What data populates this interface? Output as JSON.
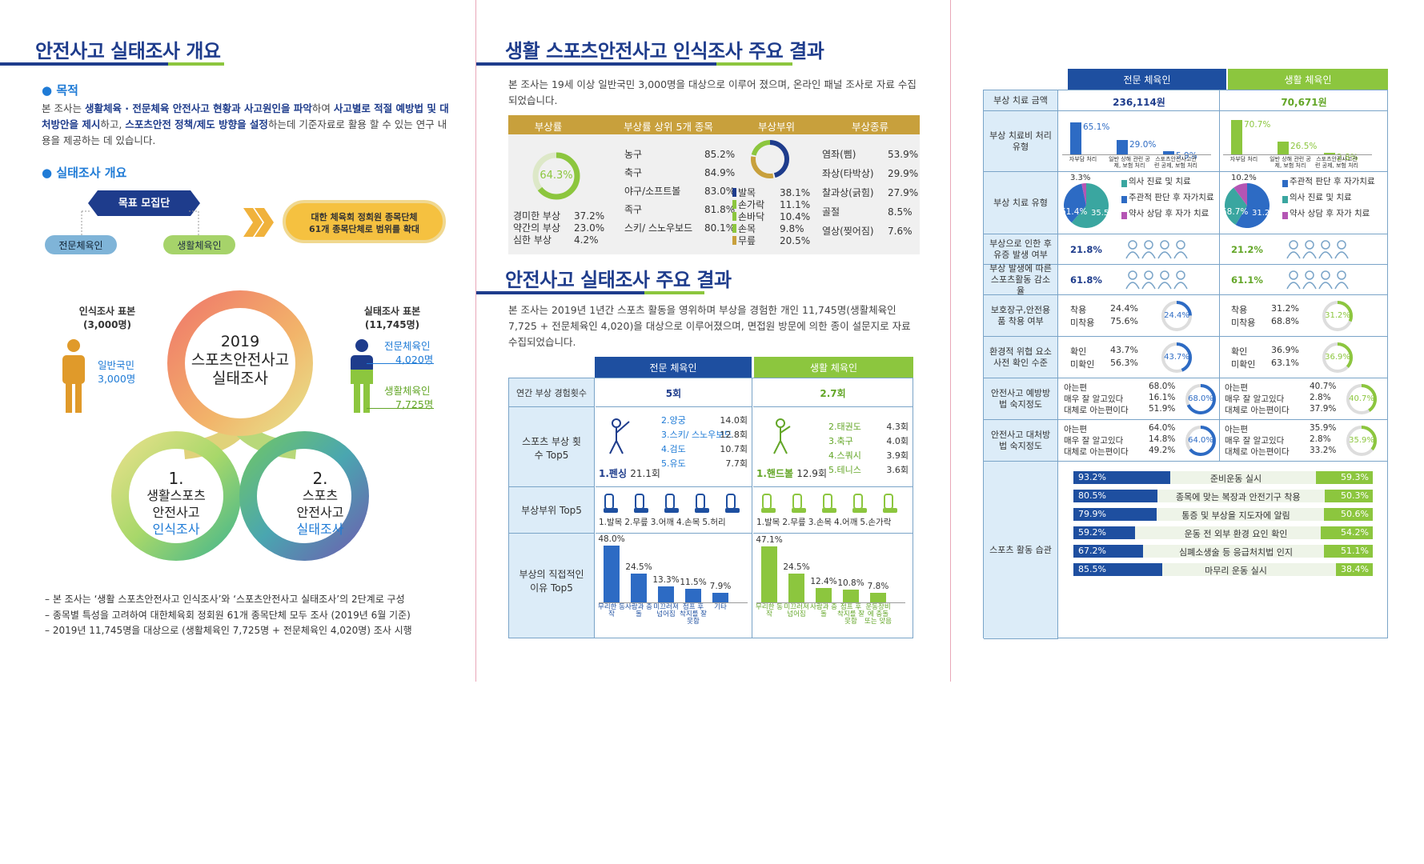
{
  "left": {
    "title": "안전사고 실태조사 개요",
    "purpose_heading": "목적",
    "purpose_text_parts": [
      "본 조사는 ",
      "생활체육 · 전문체육 안전사고 현황과 사고원인을 파악",
      "하여 ",
      "사고별로 적절 예방법 및 대처방안을 제시",
      "하고, ",
      "스포츠안전 정책/제도 방향을 설정",
      "하는데 기준자료로 활용 할 수 있는 연구 내용을 제공하는 데 있습니다."
    ],
    "overview_heading": "실태조사 개요",
    "target_pop": "목표 모집단",
    "pop_pro": "전문체육인",
    "pop_life": "생활체육인",
    "expansion": "대한 체육회 정회원 종목단체 61개 종목단체로 범위를 확대",
    "expansion_l1": "대한 체육회 정회원 종목단체",
    "expansion_l2": "61개 종목단체로 범위를 확대",
    "sample1_title": "인식조사 표본",
    "sample1_n": "(3,000명)",
    "sample1_label": "일반국민",
    "sample1_val": "3,000명",
    "sample2_title": "실태조사 표본",
    "sample2_n": "(11,745명)",
    "sample2_pro": "전문체육인",
    "sample2_pro_val": "4,020명",
    "sample2_life": "생활체육인",
    "sample2_life_val": "7,725명",
    "center_l1": "2019",
    "center_l2": "스포츠안전사고",
    "center_l3": "실태조사",
    "c1_l1": "1.",
    "c1_l2": "생활스포츠",
    "c1_l3": "안전사고",
    "c1_l4": "인식조사",
    "c2_l1": "2.",
    "c2_l2": "스포츠",
    "c2_l3": "안전사고",
    "c2_l4": "실태조사",
    "notes": [
      "– 본 조사는 ‘생활 스포츠안전사고 인식조사’와 ‘스포츠안전사고 실태조사’의 2단계로 구성",
      "– 종목별 특성을 고려하여 대한체육회 정회원 61개 종목단체 모두 조사 (2019년 6월 기준)",
      "– 2019년 11,745명을 대상으로 (생활체육인 7,725명 + 전문체육인 4,020명) 조사 시행"
    ]
  },
  "middle": {
    "title1": "생활 스포츠안전사고 인식조사 주요 결과",
    "intro1": "본 조사는 19세 이상 일반국민 3,000명을 대상으로 이루어 졌으며, 온라인 패널 조사로 자료 수집되었습니다.",
    "hdr": [
      "부상률",
      "부상률 상위 5개 종목",
      "부상부위",
      "부상종류"
    ],
    "injury_rate": "64.3%",
    "injury_rate_value": 64.3,
    "severity": [
      {
        "label": "경미한 부상",
        "value": "37.2%"
      },
      {
        "label": "약간의 부상",
        "value": "23.0%"
      },
      {
        "label": "심한 부상",
        "value": "4.2%"
      }
    ],
    "top5_sports": [
      {
        "label": "농구",
        "value": "85.2%"
      },
      {
        "label": "축구",
        "value": "84.9%"
      },
      {
        "label": "야구/소프트볼",
        "value": "83.0%"
      },
      {
        "label": "족구",
        "value": "81.8%"
      },
      {
        "label": "스키/ 스노우보드",
        "value": "80.1%"
      }
    ],
    "body_parts": [
      {
        "label": "발목",
        "value": "38.1%",
        "color": "#1e3c8c"
      },
      {
        "label": "손가락",
        "value": "11.1%",
        "color": "#8cc63e"
      },
      {
        "label": "손바닥",
        "value": "10.4%",
        "color": "#8cc63e"
      },
      {
        "label": "손목",
        "value": "9.8%",
        "color": "#8cc63e"
      },
      {
        "label": "무릎",
        "value": "20.5%",
        "color": "#c8a03c"
      }
    ],
    "injury_types": [
      {
        "label": "염좌(삠)",
        "value": "53.9%"
      },
      {
        "label": "좌상(타박상)",
        "value": "29.9%"
      },
      {
        "label": "찰과상(긁힘)",
        "value": "27.9%"
      },
      {
        "label": "골절",
        "value": "8.5%"
      },
      {
        "label": "열상(찢어짐)",
        "value": "7.6%"
      }
    ],
    "title2": "안전사고 실태조사 주요 결과",
    "intro2": "본 조사는 2019년 1년간 스포츠 활동을 영위하며 부상을 경험한 개인 11,745명(생활체육인 7,725 + 전문체육인 4,020)을 대상으로 이루어졌으며, 면접원 방문에 의한 종이 설문지로 자료 수집되었습니다.",
    "col_pro": "전문 체육인",
    "col_life": "생활 체육인",
    "row_annual": "연간 부상 경험횟수",
    "annual_pro": "5회",
    "annual_life": "2.7회",
    "row_top5": "스포츠 부상 횟수 Top5",
    "pro_top1": "1.펜싱",
    "pro_top1_val": "21.1회",
    "pro_top_list": [
      {
        "label": "2.양궁",
        "value": "14.0회"
      },
      {
        "label": "3.스키/ 스노우보드",
        "value": "12.8회"
      },
      {
        "label": "4.검도",
        "value": "10.7회"
      },
      {
        "label": "5.유도",
        "value": "7.7회"
      }
    ],
    "life_top1": "1.핸드볼",
    "life_top1_val": "12.9회",
    "life_top_list": [
      {
        "label": "2.태권도",
        "value": "4.3회"
      },
      {
        "label": "3.축구",
        "value": "4.0회"
      },
      {
        "label": "4.스쿼시",
        "value": "3.9회"
      },
      {
        "label": "5.테니스",
        "value": "3.6회"
      }
    ],
    "row_parts": "부상부위 Top5",
    "pro_parts": [
      "1.발목",
      "2.무릎",
      "3.어깨",
      "4.손목",
      "5.허리"
    ],
    "life_parts": [
      "1.발목",
      "2.무릎",
      "3.손목",
      "4.어깨",
      "5.손가락"
    ],
    "row_cause": "부상의 직접적인 이유 Top5",
    "chart_data": [
      {
        "type": "bar",
        "name": "전문 체육인",
        "categories": [
          "무리한 동작",
          "사람과 충돌",
          "미끄러져 넘어짐",
          "점프 후 착지를 잘못함",
          "기타"
        ],
        "values": [
          48.0,
          24.5,
          13.3,
          11.5,
          7.9
        ]
      },
      {
        "type": "bar",
        "name": "생활 체육인",
        "categories": [
          "무리한 동작",
          "미끄러져 넘어짐",
          "사람과 충돌",
          "점프 후 착지를 잘못함",
          "운동장비에 충돌 또는 맞음"
        ],
        "values": [
          47.1,
          24.5,
          12.4,
          10.8,
          7.8
        ]
      }
    ]
  },
  "right": {
    "col_pro": "전문 체육인",
    "col_life": "생활 체육인",
    "row_cost": "부상 치료 금액",
    "cost_pro": "236,114원",
    "cost_life": "70,671원",
    "row_costtype": "부상 치료비 처리 유형",
    "costtype_cats": [
      "자부담 처리",
      "일반 상해 관련 공제, 보험 처리",
      "스포츠안전사고관련 공제, 보험 처리"
    ],
    "costtype_pro": [
      65.1,
      29.0,
      5.9
    ],
    "costtype_pro_labels": [
      "65.1%",
      "29.0%",
      "5.9%"
    ],
    "costtype_life": [
      70.7,
      26.5,
      2.8
    ],
    "costtype_life_labels": [
      "70.7%",
      "26.5%",
      "2.8%"
    ],
    "row_treat": "부상 치료 유형",
    "treat_pro": {
      "a": "3.3%",
      "b": "61.4%",
      "c": "35.5",
      "va": 3.3,
      "vb": 61.4,
      "vc": 35.5
    },
    "treat_life": {
      "a": "10.2%",
      "b": "58.7%",
      "c": "31.2",
      "va": 10.2,
      "vb": 58.7,
      "vc": 31.2
    },
    "treat_pro_legend": [
      "의사 진료 및 치료",
      "주관적 판단 후 자가치료",
      "약사 상담 후 자가 치료"
    ],
    "treat_life_legend": [
      "주관적 판단 후 자가치료",
      "의사 진료 및 치료",
      "약사 상담 후 자가 치료"
    ],
    "treat_inner_a": "의사 진료 및 치료",
    "treat_inner_b": "주관적 판단 후 자가치료",
    "row_after": "부상으로 인한 후유증 발생 여부",
    "after_pro": "21.8%",
    "after_life": "21.2%",
    "row_reduce": "부상 발생에 따른 스포츠활동 감소율",
    "reduce_pro": "61.8%",
    "reduce_life": "61.1%",
    "row_gear": "보호장구,안전용품 착용 여부",
    "gear_pro": {
      "k1": "착용",
      "v1": "24.4%",
      "k2": "미착용",
      "v2": "75.6%",
      "ring": "24.4%",
      "rv": 24.4
    },
    "gear_life": {
      "k1": "착용",
      "v1": "31.2%",
      "k2": "미착용",
      "v2": "68.8%",
      "ring": "31.2%",
      "rv": 31.2
    },
    "row_env": "환경적 위협 요소 사전 확인 수준",
    "env_pro": {
      "k1": "확인",
      "v1": "43.7%",
      "k2": "미확인",
      "v2": "56.3%",
      "ring": "43.7%",
      "rv": 43.7
    },
    "env_life": {
      "k1": "확인",
      "v1": "36.9%",
      "k2": "미확인",
      "v2": "63.1%",
      "ring": "36.9%",
      "rv": 36.9
    },
    "row_prevent": "안전사고 예방방법 숙지정도",
    "prevent_pro": {
      "k1": "아는편",
      "v1": "68.0%",
      "k2": "매우 잘 알고있다",
      "v2": "16.1%",
      "k3": "대체로 아는편이다",
      "v3": "51.9%",
      "ring": "68.0%",
      "rv": 68.0
    },
    "prevent_life": {
      "k1": "아는편",
      "v1": "40.7%",
      "k2": "매우 잘 알고있다",
      "v2": "2.8%",
      "k3": "대체로 아는편이다",
      "v3": "37.9%",
      "ring": "40.7%",
      "rv": 40.7
    },
    "row_cope": "안전사고 대처방법 숙지정도",
    "cope_pro": {
      "k1": "아는편",
      "v1": "64.0%",
      "k2": "매우 잘 알고있다",
      "v2": "14.8%",
      "k3": "대체로 아는편이다",
      "v3": "49.2%",
      "ring": "64.0%",
      "rv": 64.0
    },
    "cope_life": {
      "k1": "아는편",
      "v1": "35.9%",
      "k2": "매우 잘 알고있다",
      "v2": "2.8%",
      "k3": "대체로 아는편이다",
      "v3": "33.2%",
      "ring": "35.9%",
      "rv": 35.9
    },
    "row_habit": "스포츠 활동 습관",
    "habits": [
      {
        "label": "준비운동 실시",
        "pro": "93.2%",
        "life": "59.3%",
        "pv": 93.2,
        "lv": 59.3
      },
      {
        "label": "종목에 맞는 복장과 안전기구 착용",
        "pro": "80.5%",
        "life": "50.3%",
        "pv": 80.5,
        "lv": 50.3
      },
      {
        "label": "통증 및 부상을 지도자에 알림",
        "pro": "79.9%",
        "life": "50.6%",
        "pv": 79.9,
        "lv": 50.6
      },
      {
        "label": "운동 전 외부 환경 요인 확인",
        "pro": "59.2%",
        "life": "54.2%",
        "pv": 59.2,
        "lv": 54.2
      },
      {
        "label": "심폐소생술 등 응급처치법 인지",
        "pro": "67.2%",
        "life": "51.1%",
        "pv": 67.2,
        "lv": 51.1
      },
      {
        "label": "마무리 운동 실시",
        "pro": "85.5%",
        "life": "38.4%",
        "pv": 85.5,
        "lv": 38.4
      }
    ]
  },
  "colors": {
    "navy": "#1e3c8c",
    "blue": "#2d6bc4",
    "green": "#8cc63e",
    "gold": "#c8a03c",
    "lightblue": "#dcecf8",
    "magenta": "#b455b4",
    "teal": "#3aa6a0"
  }
}
